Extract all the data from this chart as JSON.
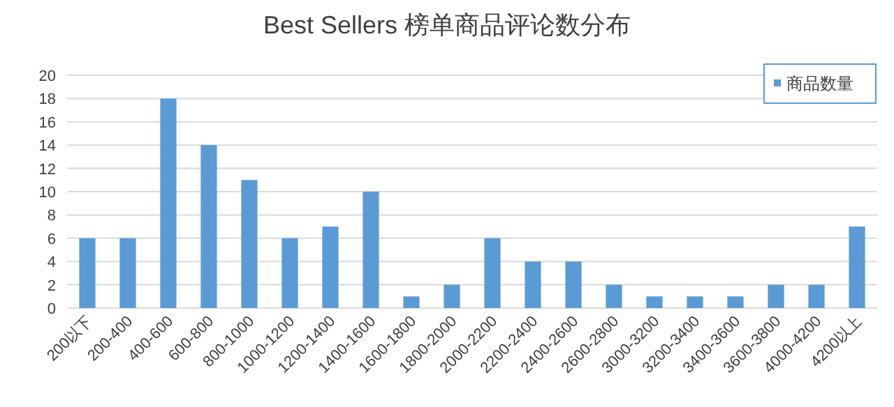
{
  "chart_data": {
    "type": "bar",
    "title": "Best Sellers 榜单商品评论数分布",
    "categories": [
      "200以下",
      "200-400",
      "400-600",
      "600-800",
      "800-1000",
      "1000-1200",
      "1200-1400",
      "1400-1600",
      "1600-1800",
      "1800-2000",
      "2000-2200",
      "2200-2400",
      "2400-2600",
      "2600-2800",
      "3000-3200",
      "3200-3400",
      "3400-3600",
      "3600-3800",
      "4000-4200",
      "4200以上"
    ],
    "series": [
      {
        "name": "商品数量",
        "color": "#5b9bd5",
        "values": [
          6,
          6,
          18,
          14,
          11,
          6,
          7,
          10,
          1,
          2,
          6,
          4,
          4,
          2,
          1,
          1,
          1,
          2,
          2,
          7
        ]
      }
    ],
    "ylim": [
      0,
      20
    ],
    "yticks": [
      0,
      2,
      4,
      6,
      8,
      10,
      12,
      14,
      16,
      18,
      20
    ],
    "grid": "y",
    "legend": "top right"
  }
}
